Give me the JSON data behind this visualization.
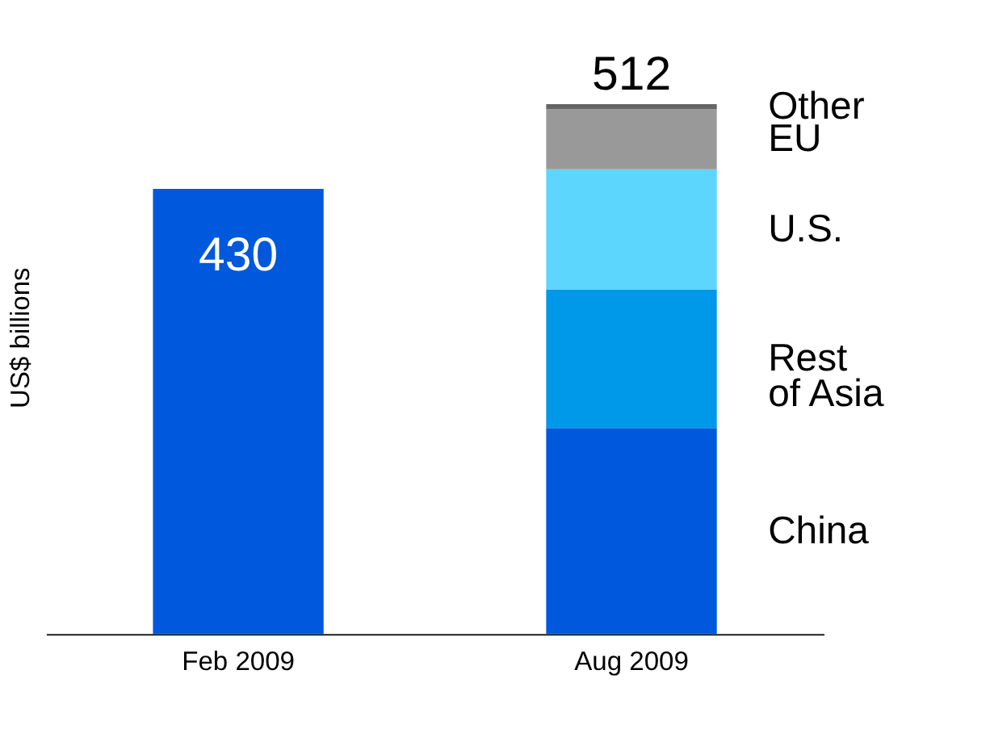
{
  "chart_data": {
    "type": "bar",
    "ylabel": "US$ billions",
    "categories": [
      "Feb 2009",
      "Aug 2009"
    ],
    "stacked": true,
    "series": [
      {
        "color": "#0058dc",
        "values": [
          430,
          null
        ],
        "value_labels": [
          "430",
          null
        ]
      },
      {
        "name": "China",
        "color": "#0058dc",
        "values": [
          null,
          199
        ]
      },
      {
        "name": "Rest of Asia",
        "color": "#0098e8",
        "values": [
          null,
          134
        ]
      },
      {
        "name": "U.S.",
        "color": "#5cd6fc",
        "values": [
          null,
          116
        ]
      },
      {
        "name": "EU",
        "color": "#999999",
        "values": [
          null,
          58
        ]
      },
      {
        "name": "Other",
        "color": "#666666",
        "values": [
          null,
          5
        ]
      }
    ],
    "totals": [
      null,
      "512"
    ],
    "grid": false
  }
}
